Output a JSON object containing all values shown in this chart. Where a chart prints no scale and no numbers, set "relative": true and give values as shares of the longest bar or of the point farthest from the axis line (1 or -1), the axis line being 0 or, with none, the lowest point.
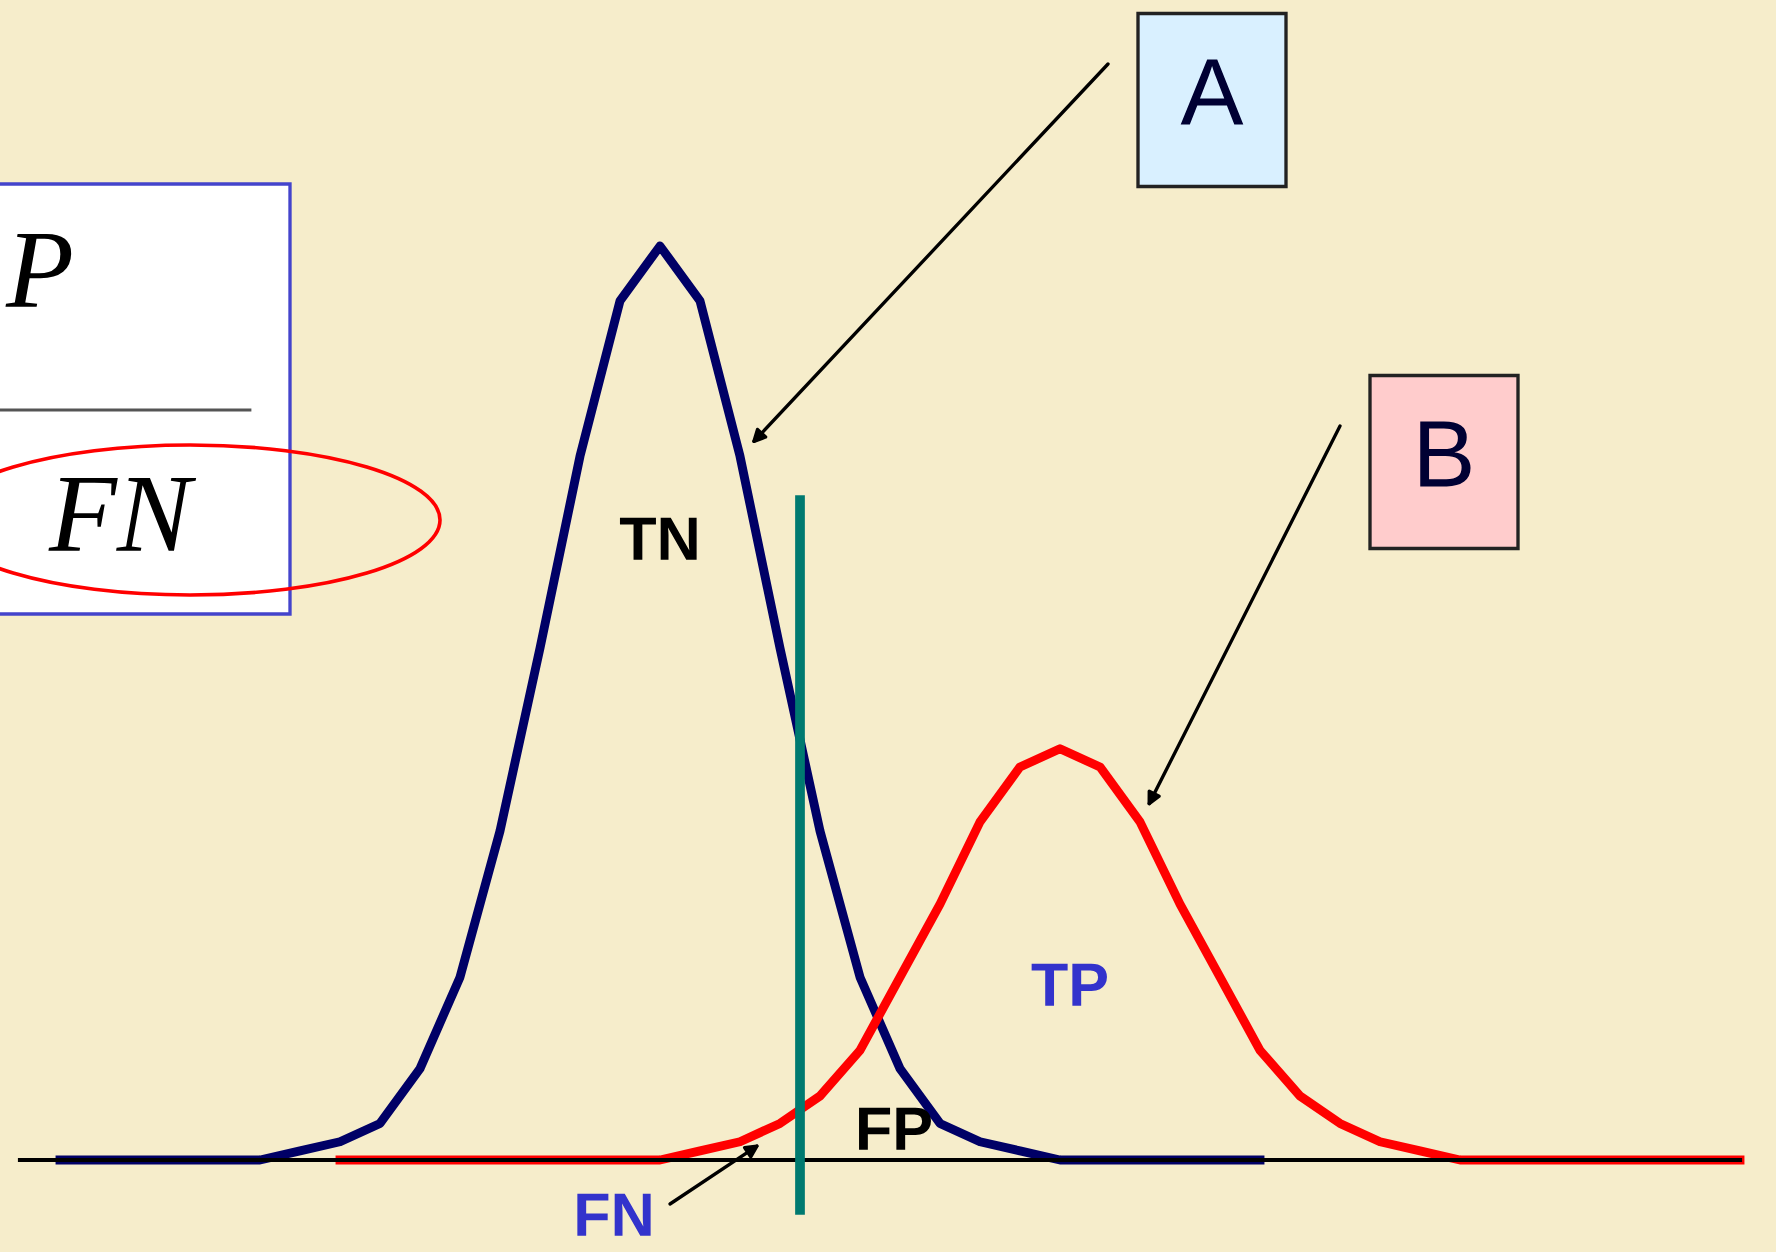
{
  "chart_data": {
    "type": "line",
    "relative": true,
    "categories": [
      null,
      null,
      null,
      null,
      null,
      null,
      null,
      null,
      null,
      null,
      null,
      null,
      null,
      null,
      null,
      null,
      null,
      null,
      null,
      null,
      null,
      null,
      null,
      null,
      null,
      null,
      null,
      null,
      null,
      null,
      null,
      null,
      null,
      null,
      null,
      null,
      null,
      null,
      null,
      null,
      null,
      null,
      null,
      null
    ],
    "series": [
      {
        "name": "A",
        "color": "#000066",
        "values": [
          null,
          0,
          0,
          0,
          0,
          0,
          0,
          0.01,
          0.02,
          0.04,
          0.1,
          0.2,
          0.36,
          0.56,
          0.77,
          0.94,
          1,
          0.94,
          0.77,
          0.56,
          0.36,
          0.2,
          0.1,
          0.04,
          0.02,
          0.01,
          0,
          0,
          0,
          0,
          0,
          0,
          null,
          null,
          null,
          null,
          null,
          null,
          null,
          null,
          null,
          null,
          null,
          null
        ]
      },
      {
        "name": "B",
        "color": "#ff0000",
        "values": [
          null,
          null,
          null,
          null,
          null,
          null,
          null,
          null,
          0,
          0,
          0,
          0,
          0,
          0,
          0,
          0,
          0,
          0.01,
          0.02,
          0.04,
          0.07,
          0.12,
          0.2,
          0.28,
          0.37,
          0.43,
          0.45,
          0.43,
          0.37,
          0.28,
          0.2,
          0.12,
          0.07,
          0.04,
          0.02,
          0.01,
          0,
          0,
          0,
          0,
          0,
          0,
          0,
          0
        ]
      }
    ],
    "annotations": [
      "TN",
      "TP",
      "FP",
      "FN",
      "P",
      "FN"
    ],
    "legend": false,
    "marker": "none",
    "line_style": "solid",
    "tick_labels": false
  }
}
